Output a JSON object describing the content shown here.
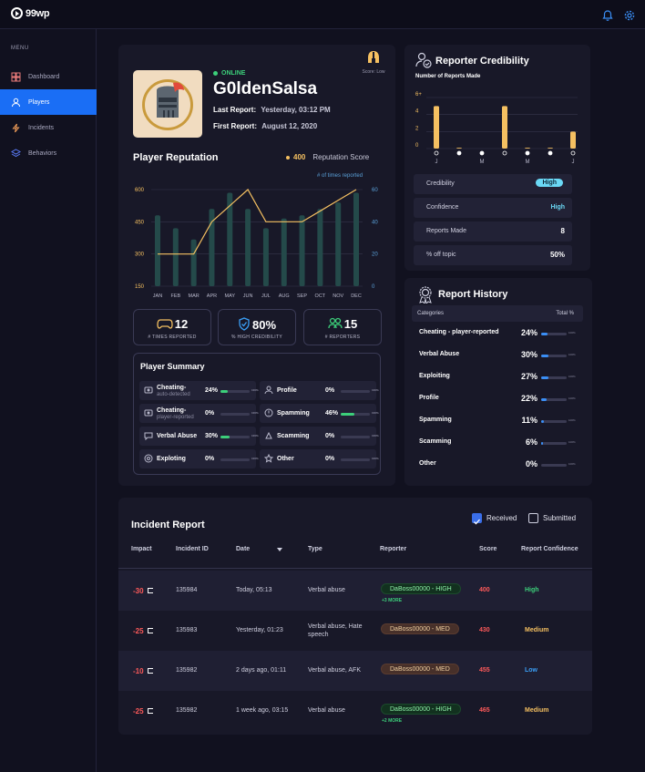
{
  "app": {
    "logo_text": "99WP"
  },
  "sidebar": {
    "menu_label": "MENU",
    "items": [
      {
        "label": "Dashboard",
        "icon": "dashboard-icon"
      },
      {
        "label": "Players",
        "icon": "user-icon",
        "active": true
      },
      {
        "label": "Incidents",
        "icon": "lightning-icon"
      },
      {
        "label": "Behaviors",
        "icon": "layers-icon"
      }
    ]
  },
  "player": {
    "status": "ONLINE",
    "name": "G0ldenSalsa",
    "last_report_label": "Last Report:",
    "last_report_value": "Yesterday, 03:12 PM",
    "first_report_label": "First Report:",
    "first_report_value": "August 12, 2020",
    "score_badge": "Score: Low"
  },
  "reputation": {
    "title": "Player Reputation",
    "score": "400",
    "score_label": "Reputation Score",
    "right_axis_title": "# of times reported"
  },
  "chart_data": {
    "type": "bar",
    "categories": [
      "JAN",
      "FEB",
      "MAR",
      "APR",
      "MAY",
      "JUN",
      "JUL",
      "AUG",
      "SEP",
      "OCT",
      "NOV",
      "DEC"
    ],
    "series": [
      {
        "name": "# of times reported",
        "type": "bar",
        "axis": "right",
        "values": [
          44,
          36,
          29,
          48,
          58,
          48,
          36,
          42,
          44,
          48,
          52,
          58
        ]
      },
      {
        "name": "Reputation Score",
        "type": "line",
        "axis": "left",
        "values": [
          300,
          300,
          300,
          450,
          525,
          600,
          450,
          450,
          450,
          500,
          550,
          600
        ]
      }
    ],
    "y_left": {
      "min": 150,
      "max": 600,
      "ticks": [
        150,
        300,
        450,
        600
      ]
    },
    "y_right": {
      "min": 0,
      "max": 60,
      "ticks": [
        0,
        20,
        40,
        60
      ]
    }
  },
  "stats": [
    {
      "value": "12",
      "label": "# TIMES REPORTED",
      "icon": "gamepad-icon"
    },
    {
      "value": "80%",
      "label": "% HIGH CREDIBILITY",
      "icon": "shield-icon"
    },
    {
      "value": "15",
      "label": "# REPORTERS",
      "icon": "users-icon"
    }
  ],
  "summary": {
    "title": "Player Summary",
    "items": [
      {
        "name": "Cheating-",
        "sub": "auto-detected",
        "pct": "24%",
        "frac": 0.24,
        "icon": "cheat-icon"
      },
      {
        "name": "Profile",
        "sub": "",
        "pct": "0%",
        "frac": 0,
        "icon": "profile-icon"
      },
      {
        "name": "Cheating-",
        "sub": "player-reported",
        "pct": "0%",
        "frac": 0,
        "icon": "cheat-icon"
      },
      {
        "name": "Spamming",
        "sub": "",
        "pct": "46%",
        "frac": 0.46,
        "icon": "alert-icon"
      },
      {
        "name": "Verbal Abuse",
        "sub": "",
        "pct": "30%",
        "frac": 0.3,
        "icon": "speech-icon"
      },
      {
        "name": "Scamming",
        "sub": "",
        "pct": "0%",
        "frac": 0,
        "icon": "scam-icon"
      },
      {
        "name": "Exploting",
        "sub": "",
        "pct": "0%",
        "frac": 0,
        "icon": "exploit-icon"
      },
      {
        "name": "Other",
        "sub": "",
        "pct": "0%",
        "frac": 0,
        "icon": "star-icon"
      }
    ],
    "hundred": "100%"
  },
  "credibility": {
    "title": "Reporter Credibility",
    "chart_title": "Number of Reports Made",
    "y_ticks": [
      "6+",
      "4",
      "2",
      "0"
    ],
    "months": [
      "J",
      "",
      "M",
      "",
      "M",
      "",
      "J"
    ],
    "bars": [
      5,
      0,
      0,
      5,
      0,
      0,
      2
    ],
    "small_bars": [
      0,
      0.1,
      0,
      0,
      0.1,
      0.1,
      0
    ],
    "rows": [
      {
        "key": "Credibility",
        "value": "High",
        "style": "pill"
      },
      {
        "key": "Confidence",
        "value": "High",
        "style": "blue"
      },
      {
        "key": "Reports Made",
        "value": "8",
        "style": "white"
      },
      {
        "key": "% off topic",
        "value": "50%",
        "style": "white"
      }
    ]
  },
  "history": {
    "title": "Report History",
    "col1": "Categories",
    "col2": "Total %",
    "rows": [
      {
        "name": "Cheating - player-reported",
        "pct": "24%",
        "frac": 0.24
      },
      {
        "name": "Verbal Abuse",
        "pct": "30%",
        "frac": 0.3
      },
      {
        "name": "Exploiting",
        "pct": "27%",
        "frac": 0.27
      },
      {
        "name": "Profile",
        "pct": "22%",
        "frac": 0.22
      },
      {
        "name": "Spamming",
        "pct": "11%",
        "frac": 0.11
      },
      {
        "name": "Scamming",
        "pct": "6%",
        "frac": 0.06
      },
      {
        "name": "Other",
        "pct": "0%",
        "frac": 0
      }
    ],
    "hundred": "100%"
  },
  "incidents": {
    "title": "Incident Report",
    "received_label": "Received",
    "submitted_label": "Submitted",
    "headers": [
      "Impact",
      "Incident ID",
      "Date",
      "Type",
      "Reporter",
      "Score",
      "Report Confidence"
    ],
    "rows": [
      {
        "impact": "-30",
        "id": "135984",
        "date": "Today, 05:13",
        "type": "Verbal abuse",
        "type2": "",
        "reporter": "DaBoss00000 - HIGH",
        "level": "high",
        "more": "+3 MORE",
        "score": "400",
        "confidence": "High",
        "conf_color": "#3ccf7a"
      },
      {
        "impact": "-25",
        "id": "135983",
        "date": "Yesterday, 01:23",
        "type": "Verbal abuse, Hate",
        "type2": "speech",
        "reporter": "DaBoss00000 - MED",
        "level": "med",
        "more": "",
        "score": "430",
        "confidence": "Medium",
        "conf_color": "#f5c061"
      },
      {
        "impact": "-10",
        "id": "135982",
        "date": "2 days ago, 01:11",
        "type": "Verbal abuse, AFK",
        "type2": "",
        "reporter": "DaBoss00000 - MED",
        "level": "med",
        "more": "",
        "score": "455",
        "confidence": "Low",
        "conf_color": "#3a9ef5"
      },
      {
        "impact": "-25",
        "id": "135982",
        "date": "1 week ago, 03:15",
        "type": "Verbal abuse",
        "type2": "",
        "reporter": "DaBoss00000 - HIGH",
        "level": "high",
        "more": "+2 MORE",
        "score": "465",
        "confidence": "Medium",
        "conf_color": "#f5c061"
      }
    ]
  }
}
